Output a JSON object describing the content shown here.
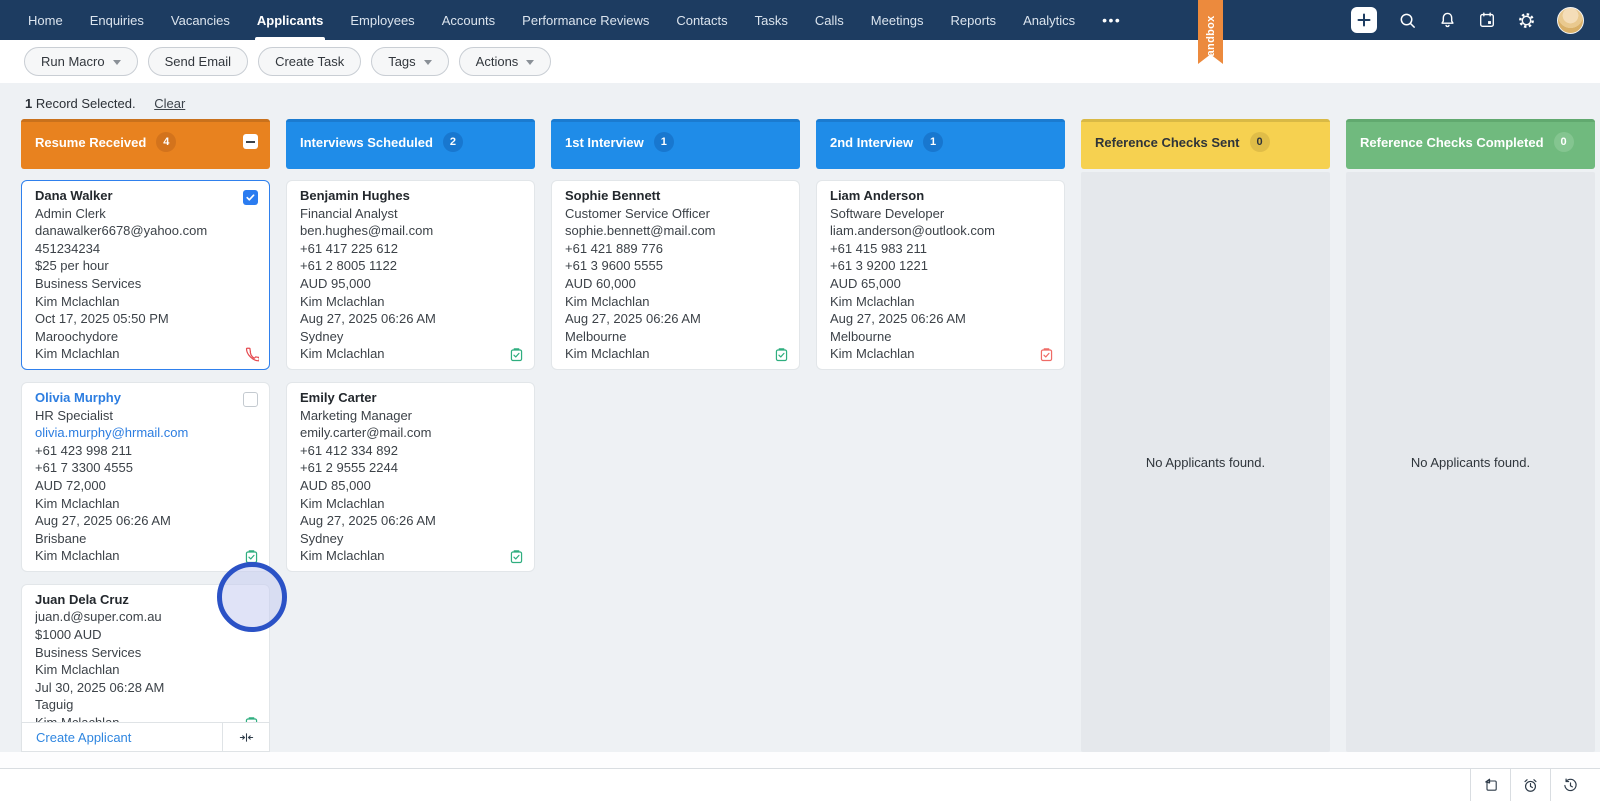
{
  "colors": {
    "navbar": "#1d3c61",
    "board_bg": "#eef1f4",
    "empty_col_bg": "#e5e8ec",
    "link_blue": "#2c7de0",
    "selected_card_border": "#2f80ed",
    "checkbox_checked": "#2b7cf0",
    "sandbox_ribbon": "#ec8a3d",
    "phone_icon_red": "#e5494f",
    "task_icon_green": "#2fae7f",
    "task_icon_red": "#ef6b66"
  },
  "nav": {
    "items": [
      {
        "id": "home",
        "label": "Home",
        "active": false
      },
      {
        "id": "enquiries",
        "label": "Enquiries",
        "active": false
      },
      {
        "id": "vacancies",
        "label": "Vacancies",
        "active": false
      },
      {
        "id": "applicants",
        "label": "Applicants",
        "active": true
      },
      {
        "id": "employees",
        "label": "Employees",
        "active": false
      },
      {
        "id": "accounts",
        "label": "Accounts",
        "active": false
      },
      {
        "id": "performance-reviews",
        "label": "Performance Reviews",
        "active": false
      },
      {
        "id": "contacts",
        "label": "Contacts",
        "active": false
      },
      {
        "id": "tasks",
        "label": "Tasks",
        "active": false
      },
      {
        "id": "calls",
        "label": "Calls",
        "active": false
      },
      {
        "id": "meetings",
        "label": "Meetings",
        "active": false
      },
      {
        "id": "reports",
        "label": "Reports",
        "active": false
      },
      {
        "id": "analytics",
        "label": "Analytics",
        "active": false
      }
    ],
    "more_label": "•••",
    "right_icons": [
      "add",
      "search",
      "notifications",
      "calendar",
      "settings",
      "avatar"
    ],
    "sandbox_label": "Sandbox"
  },
  "toolbar": {
    "buttons": [
      {
        "id": "run-macro",
        "label": "Run Macro",
        "dropdown": true
      },
      {
        "id": "send-email",
        "label": "Send Email",
        "dropdown": false
      },
      {
        "id": "create-task",
        "label": "Create Task",
        "dropdown": false
      },
      {
        "id": "tags",
        "label": "Tags",
        "dropdown": true
      },
      {
        "id": "actions",
        "label": "Actions",
        "dropdown": true
      }
    ]
  },
  "selection": {
    "count": "1",
    "label": "Record Selected.",
    "clear_label": "Clear"
  },
  "board": {
    "columns": [
      {
        "id": "resume-received",
        "title": "Resume Received",
        "count": "4",
        "header_bg": "#e8821f",
        "header_top": "#c9711c",
        "header_text": "#ffffff",
        "badge_bg": "#d3731c",
        "badge_text": "#ffffff",
        "select_all": true,
        "footer_label": "Create Applicant",
        "cards": [
          {
            "id": "dana-walker",
            "name": "Dana Walker",
            "name_link": false,
            "selected": true,
            "checkbox": "checked",
            "icon": "phone-red",
            "lines": [
              {
                "text": "Admin Clerk",
                "link": false
              },
              {
                "text": "danawalker6678@yahoo.com",
                "link": false
              },
              {
                "text": "451234234",
                "link": false
              },
              {
                "text": "$25 per hour",
                "link": false
              },
              {
                "text": "Business Services",
                "link": false
              },
              {
                "text": "Kim Mclachlan",
                "link": false
              },
              {
                "text": "Oct 17, 2025 05:50 PM",
                "link": false
              },
              {
                "text": "Maroochydore",
                "link": false
              },
              {
                "text": "Kim Mclachlan",
                "link": false
              }
            ]
          },
          {
            "id": "olivia-murphy",
            "name": "Olivia Murphy",
            "name_link": true,
            "selected": false,
            "checkbox": "unchecked",
            "icon": "task-green",
            "lines": [
              {
                "text": "HR Specialist",
                "link": false
              },
              {
                "text": "olivia.murphy@hrmail.com",
                "link": true
              },
              {
                "text": "+61 423 998 211",
                "link": false
              },
              {
                "text": "+61 7 3300 4555",
                "link": false
              },
              {
                "text": "AUD 72,000",
                "link": false
              },
              {
                "text": "Kim Mclachlan",
                "link": false
              },
              {
                "text": "Aug 27, 2025 06:26 AM",
                "link": false
              },
              {
                "text": "Brisbane",
                "link": false
              },
              {
                "text": "Kim Mclachlan",
                "link": false
              }
            ]
          },
          {
            "id": "juan-dela-cruz",
            "name": "Juan Dela Cruz",
            "name_link": false,
            "selected": false,
            "checkbox": "none",
            "icon": "task-green",
            "lines": [
              {
                "text": "juan.d@super.com.au",
                "link": false
              },
              {
                "text": "$1000 AUD",
                "link": false
              },
              {
                "text": "Business Services",
                "link": false
              },
              {
                "text": "Kim Mclachlan",
                "link": false
              },
              {
                "text": "Jul 30, 2025 06:28 AM",
                "link": false
              },
              {
                "text": "Taguig",
                "link": false
              },
              {
                "text": "Kim Mclachlan",
                "link": false
              }
            ]
          }
        ]
      },
      {
        "id": "interviews-scheduled",
        "title": "Interviews Scheduled",
        "count": "2",
        "header_bg": "#1f8ce8",
        "header_top": "#1b7bd0",
        "header_text": "#ffffff",
        "badge_bg": "#1877cf",
        "badge_text": "#ffffff",
        "select_all": false,
        "footer_label": null,
        "cards": [
          {
            "id": "benjamin-hughes",
            "name": "Benjamin Hughes",
            "name_link": false,
            "selected": false,
            "checkbox": "none",
            "icon": "task-green",
            "lines": [
              {
                "text": "Financial Analyst",
                "link": false
              },
              {
                "text": "ben.hughes@mail.com",
                "link": false
              },
              {
                "text": "+61 417 225 612",
                "link": false
              },
              {
                "text": "+61 2 8005 1122",
                "link": false
              },
              {
                "text": "AUD 95,000",
                "link": false
              },
              {
                "text": "Kim Mclachlan",
                "link": false
              },
              {
                "text": "Aug 27, 2025 06:26 AM",
                "link": false
              },
              {
                "text": "Sydney",
                "link": false
              },
              {
                "text": "Kim Mclachlan",
                "link": false
              }
            ]
          },
          {
            "id": "emily-carter",
            "name": "Emily Carter",
            "name_link": false,
            "selected": false,
            "checkbox": "none",
            "icon": "task-green",
            "lines": [
              {
                "text": "Marketing Manager",
                "link": false
              },
              {
                "text": "emily.carter@mail.com",
                "link": false
              },
              {
                "text": "+61 412 334 892",
                "link": false
              },
              {
                "text": "+61 2 9555 2244",
                "link": false
              },
              {
                "text": "AUD 85,000",
                "link": false
              },
              {
                "text": "Kim Mclachlan",
                "link": false
              },
              {
                "text": "Aug 27, 2025 06:26 AM",
                "link": false
              },
              {
                "text": "Sydney",
                "link": false
              },
              {
                "text": "Kim Mclachlan",
                "link": false
              }
            ]
          }
        ]
      },
      {
        "id": "1st-interview",
        "title": "1st Interview",
        "count": "1",
        "header_bg": "#1f8ce8",
        "header_top": "#1b7bd0",
        "header_text": "#ffffff",
        "badge_bg": "#1877cf",
        "badge_text": "#ffffff",
        "select_all": false,
        "footer_label": null,
        "cards": [
          {
            "id": "sophie-bennett",
            "name": "Sophie Bennett",
            "name_link": false,
            "selected": false,
            "checkbox": "none",
            "icon": "task-green",
            "lines": [
              {
                "text": "Customer Service Officer",
                "link": false
              },
              {
                "text": "sophie.bennett@mail.com",
                "link": false
              },
              {
                "text": "+61 421 889 776",
                "link": false
              },
              {
                "text": "+61 3 9600 5555",
                "link": false
              },
              {
                "text": "AUD 60,000",
                "link": false
              },
              {
                "text": "Kim Mclachlan",
                "link": false
              },
              {
                "text": "Aug 27, 2025 06:26 AM",
                "link": false
              },
              {
                "text": "Melbourne",
                "link": false
              },
              {
                "text": "Kim Mclachlan",
                "link": false
              }
            ]
          }
        ]
      },
      {
        "id": "2nd-interview",
        "title": "2nd Interview",
        "count": "1",
        "header_bg": "#1f8ce8",
        "header_top": "#1b7bd0",
        "header_text": "#ffffff",
        "badge_bg": "#1877cf",
        "badge_text": "#ffffff",
        "select_all": false,
        "footer_label": null,
        "cards": [
          {
            "id": "liam-anderson",
            "name": "Liam Anderson",
            "name_link": false,
            "selected": false,
            "checkbox": "none",
            "icon": "task-red",
            "lines": [
              {
                "text": "Software Developer",
                "link": false
              },
              {
                "text": "liam.anderson@outlook.com",
                "link": false
              },
              {
                "text": "+61 415 983 211",
                "link": false
              },
              {
                "text": "+61 3 9200 1221",
                "link": false
              },
              {
                "text": "AUD 65,000",
                "link": false
              },
              {
                "text": "Kim Mclachlan",
                "link": false
              },
              {
                "text": "Aug 27, 2025 06:26 AM",
                "link": false
              },
              {
                "text": "Melbourne",
                "link": false
              },
              {
                "text": "Kim Mclachlan",
                "link": false
              }
            ]
          }
        ]
      },
      {
        "id": "reference-checks-sent",
        "title": "Reference Checks Sent",
        "count": "0",
        "header_bg": "#f6d150",
        "header_top": "#d9b945",
        "header_text": "#2f3439",
        "badge_bg": "#e0bd48",
        "badge_text": "#2f3439",
        "select_all": false,
        "footer_label": null,
        "cards": [],
        "empty_text": "No Applicants found."
      },
      {
        "id": "reference-checks-completed",
        "title": "Reference Checks Completed",
        "count": "0",
        "header_bg": "#70ba7e",
        "header_top": "#61a96f",
        "header_text": "#ffffff",
        "badge_bg": "#84c590",
        "badge_text": "#ffffff",
        "select_all": false,
        "footer_label": null,
        "cards": [],
        "empty_text": "No Applicants found."
      }
    ]
  },
  "bottom_toolbar": {
    "icons": [
      "note",
      "reminder",
      "history"
    ]
  }
}
